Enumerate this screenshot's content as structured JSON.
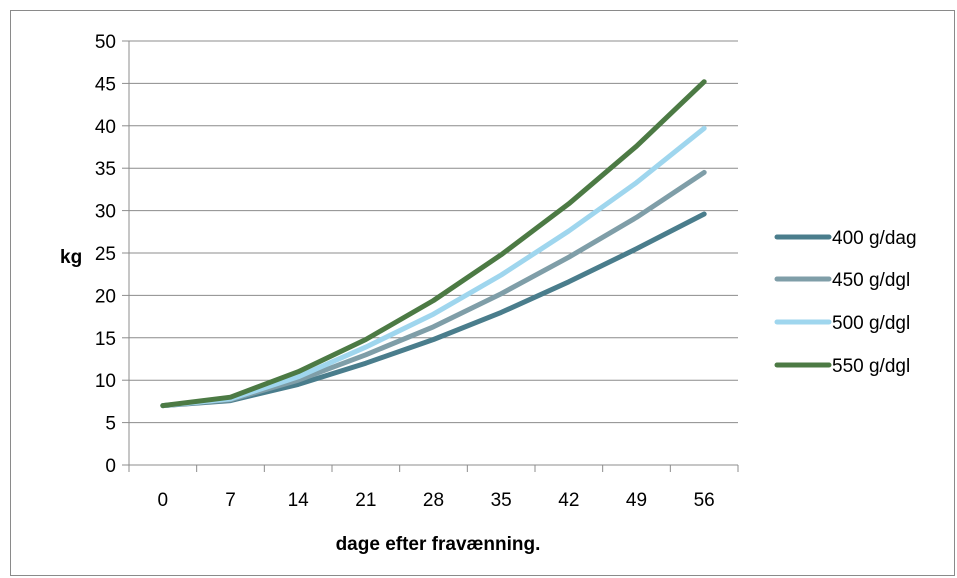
{
  "chart_data": {
    "type": "line",
    "title": "",
    "xlabel": "dage efter fravænning.",
    "ylabel": "kg",
    "x": [
      0,
      7,
      14,
      21,
      28,
      35,
      42,
      49,
      56
    ],
    "ylim": [
      0,
      50
    ],
    "yticks": [
      0,
      5,
      10,
      15,
      20,
      25,
      30,
      35,
      40,
      45,
      50
    ],
    "grid": true,
    "legend": "right",
    "series": [
      {
        "name": "400 g/dag",
        "color": "#4a7d8c",
        "values": [
          7,
          7.6,
          9.5,
          12,
          14.8,
          18,
          21.6,
          25.5,
          29.6
        ]
      },
      {
        "name": "450 g/dgl",
        "color": "#7f9ea8",
        "values": [
          7,
          7.7,
          10,
          13,
          16.3,
          20.2,
          24.5,
          29.2,
          34.5
        ]
      },
      {
        "name": "500 g/dgl",
        "color": "#9fd6ee",
        "values": [
          7,
          7.8,
          10.4,
          13.9,
          17.8,
          22.4,
          27.6,
          33.3,
          39.7
        ]
      },
      {
        "name": "550 g/dgl",
        "color": "#4c7a44",
        "values": [
          7,
          8,
          11,
          14.8,
          19.4,
          24.8,
          30.8,
          37.6,
          45.2
        ]
      }
    ]
  }
}
